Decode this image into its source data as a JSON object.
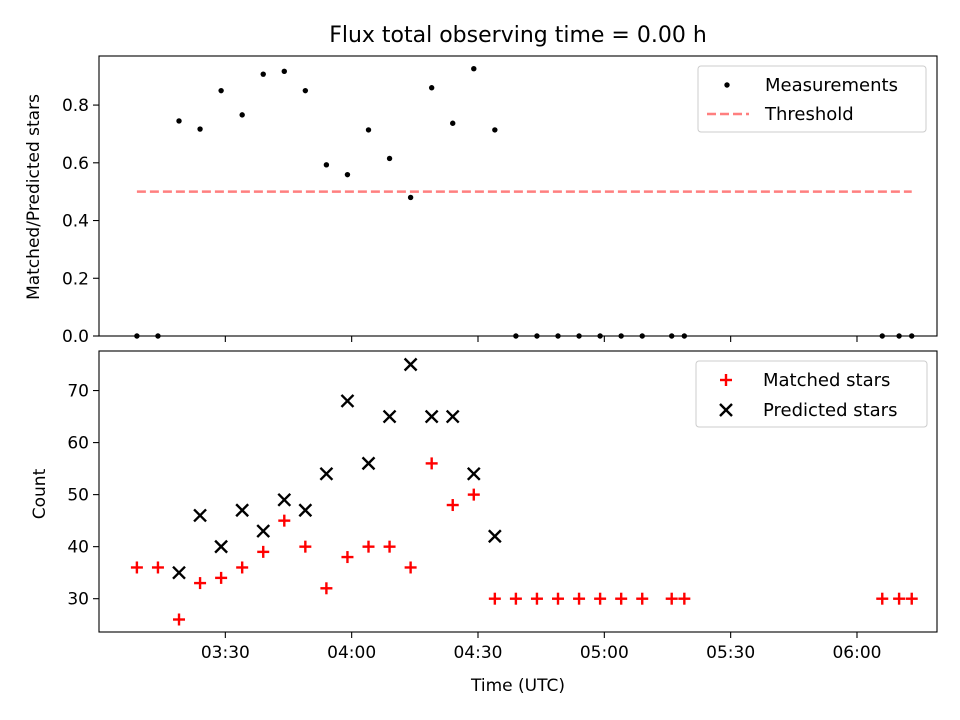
{
  "figure": {
    "title": "Flux total observing time = 0.00 h",
    "xlabel": "Time (UTC)"
  },
  "colors": {
    "measurements": "#000000",
    "threshold": "#ff7f7f",
    "matched": "#ff0000",
    "predicted": "#000000"
  },
  "chart_data": [
    {
      "type": "scatter",
      "panel": "top",
      "ylabel": "Matched/Predicted stars",
      "ylim": [
        0,
        0.97
      ],
      "yticks": [
        0.0,
        0.2,
        0.4,
        0.6,
        0.8
      ],
      "ytick_labels": [
        "0.0",
        "0.2",
        "0.4",
        "0.6",
        "0.8"
      ],
      "xlim_minutes": [
        180,
        379
      ],
      "xticks_minutes": [
        210,
        240,
        270,
        300,
        330,
        360
      ],
      "xtick_labels": [],
      "legend_position": "top-right",
      "series": [
        {
          "name": "Measurements",
          "marker": "dot",
          "x": [
            "03:09",
            "03:14",
            "03:19",
            "03:24",
            "03:29",
            "03:34",
            "03:39",
            "03:44",
            "03:49",
            "03:54",
            "03:59",
            "04:04",
            "04:09",
            "04:14",
            "04:19",
            "04:24",
            "04:29",
            "04:34",
            "04:39",
            "04:44",
            "04:49",
            "04:54",
            "04:59",
            "05:04",
            "05:09",
            "05:16",
            "05:19",
            "06:06",
            "06:10",
            "06:13"
          ],
          "values": [
            0.0,
            0.0,
            0.745,
            0.717,
            0.85,
            0.766,
            0.907,
            0.917,
            0.85,
            0.593,
            0.559,
            0.714,
            0.615,
            0.48,
            0.86,
            0.737,
            0.926,
            0.714,
            0.0,
            0.0,
            0.0,
            0.0,
            0.0,
            0.0,
            0.0,
            0.0,
            0.0,
            0.0,
            0.0,
            0.0
          ]
        },
        {
          "name": "Threshold",
          "marker": "dashed-line",
          "x": [
            "03:09",
            "06:13"
          ],
          "values": [
            0.5,
            0.5
          ]
        }
      ]
    },
    {
      "type": "scatter",
      "panel": "bottom",
      "ylabel": "Count",
      "ylim": [
        23.6,
        77.6
      ],
      "yticks": [
        30,
        40,
        50,
        60,
        70
      ],
      "ytick_labels": [
        "30",
        "40",
        "50",
        "60",
        "70"
      ],
      "xlim_minutes": [
        180,
        379
      ],
      "xticks_minutes": [
        210,
        240,
        270,
        300,
        330,
        360
      ],
      "xtick_labels": [
        "03:30",
        "04:00",
        "04:30",
        "05:00",
        "05:30",
        "06:00"
      ],
      "legend_position": "top-right",
      "series": [
        {
          "name": "Matched stars",
          "marker": "plus",
          "x": [
            "03:09",
            "03:14",
            "03:19",
            "03:24",
            "03:29",
            "03:34",
            "03:39",
            "03:44",
            "03:49",
            "03:54",
            "03:59",
            "04:04",
            "04:09",
            "04:14",
            "04:19",
            "04:24",
            "04:29",
            "04:34",
            "04:39",
            "04:44",
            "04:49",
            "04:54",
            "04:59",
            "05:04",
            "05:09",
            "05:16",
            "05:19",
            "06:06",
            "06:10",
            "06:13"
          ],
          "values": [
            36,
            36,
            26,
            33,
            34,
            36,
            39,
            45,
            40,
            32,
            38,
            40,
            40,
            36,
            56,
            48,
            50,
            30,
            30,
            30,
            30,
            30,
            30,
            30,
            30,
            30,
            30,
            30,
            30,
            30
          ]
        },
        {
          "name": "Predicted stars",
          "marker": "x",
          "x": [
            "03:19",
            "03:24",
            "03:29",
            "03:34",
            "03:39",
            "03:44",
            "03:49",
            "03:54",
            "03:59",
            "04:04",
            "04:09",
            "04:14",
            "04:19",
            "04:24",
            "04:29",
            "04:34"
          ],
          "values": [
            35,
            46,
            40,
            47,
            43,
            49,
            47,
            54,
            68,
            56,
            65,
            75,
            65,
            65,
            54,
            42
          ]
        }
      ]
    }
  ]
}
